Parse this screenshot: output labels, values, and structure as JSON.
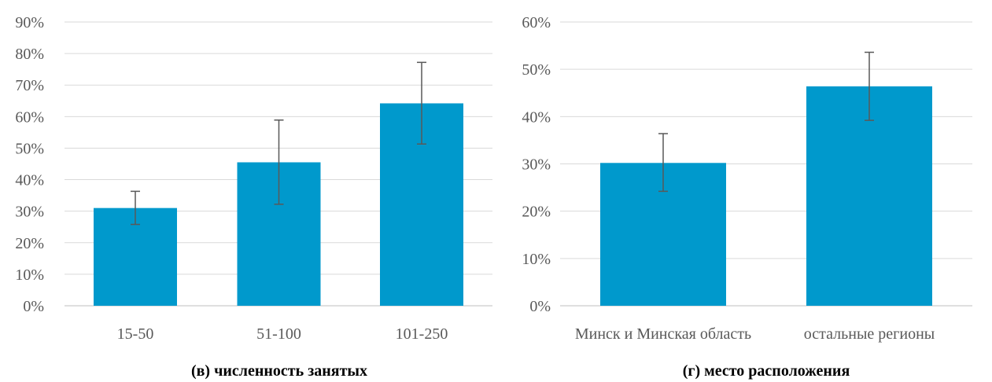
{
  "chart_data": [
    {
      "type": "bar",
      "title": "(в) численность занятых",
      "categories": [
        "15-50",
        "51-100",
        "101-250"
      ],
      "values": [
        0.31,
        0.455,
        0.642
      ],
      "error_low": [
        0.258,
        0.322,
        0.513
      ],
      "error_high": [
        0.363,
        0.589,
        0.772
      ],
      "ylim": [
        0,
        0.9
      ],
      "yticks": [
        "0%",
        "10%",
        "20%",
        "30%",
        "40%",
        "50%",
        "60%",
        "70%",
        "80%",
        "90%"
      ],
      "grid": true,
      "bar_color": "#0099CC"
    },
    {
      "type": "bar",
      "title": "(г) место расположения",
      "categories": [
        "Минск и Минская область",
        "остальные регионы"
      ],
      "values": [
        0.302,
        0.464
      ],
      "error_low": [
        0.242,
        0.392
      ],
      "error_high": [
        0.364,
        0.536
      ],
      "ylim": [
        0,
        0.6
      ],
      "yticks": [
        "0%",
        "10%",
        "20%",
        "30%",
        "40%",
        "50%",
        "60%"
      ],
      "grid": true,
      "bar_color": "#0099CC"
    }
  ]
}
